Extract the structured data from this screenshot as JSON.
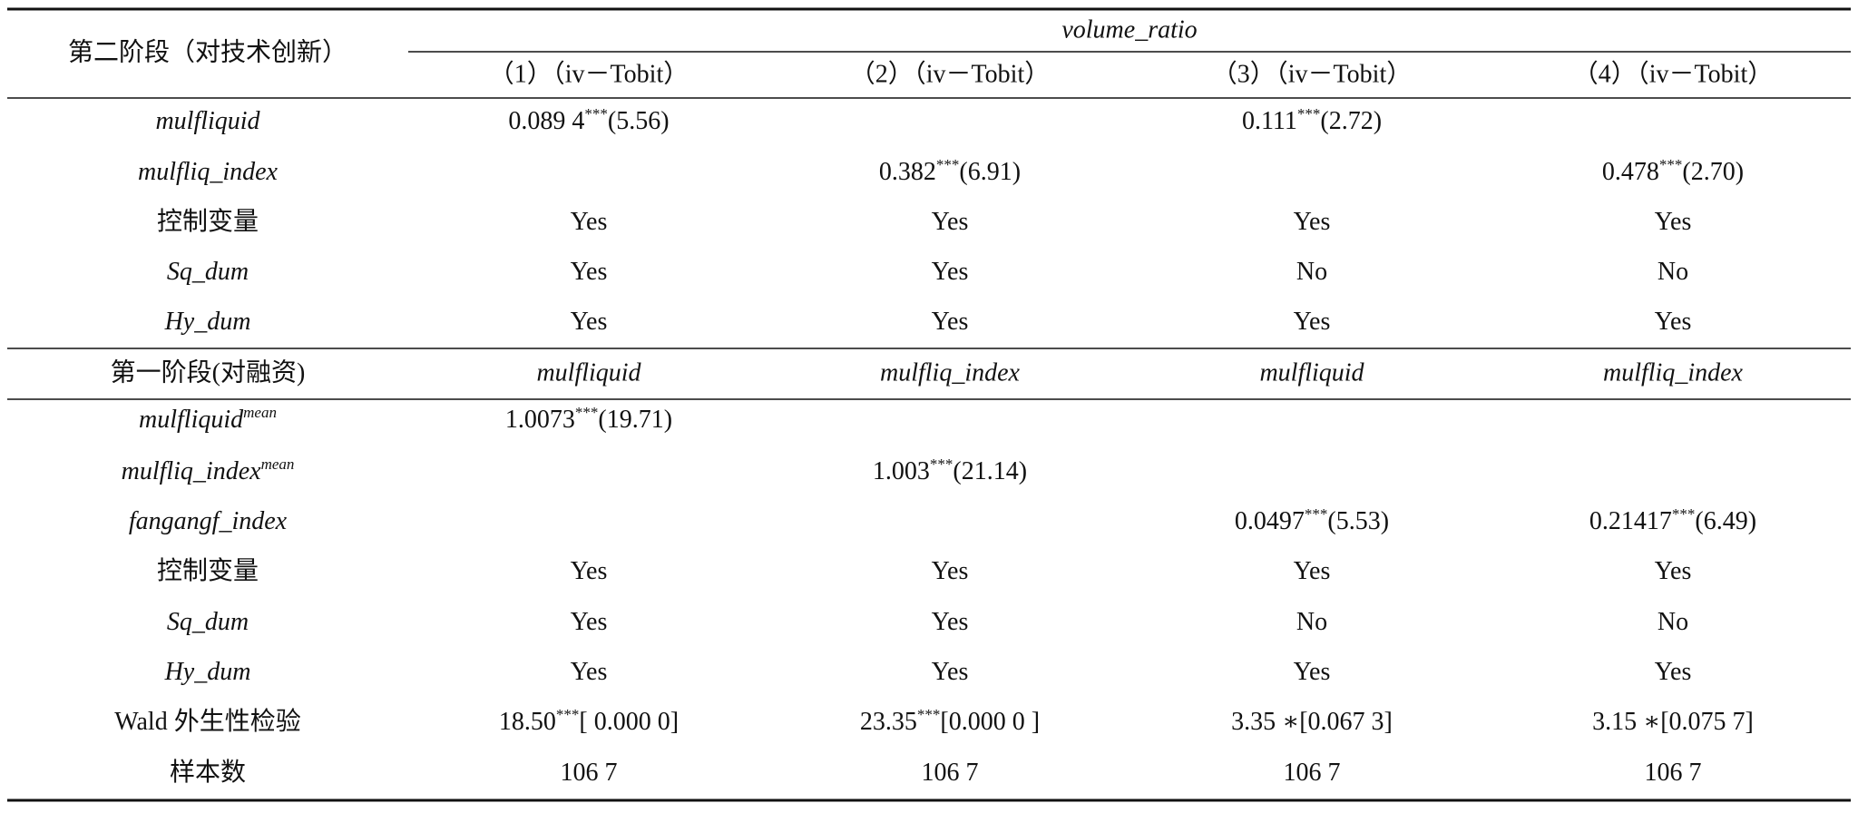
{
  "table": {
    "top": {
      "stage_label": "第二阶段（对技术创新）",
      "dependent": "volume_ratio",
      "columns": [
        "（1）（iv－Tobit）",
        "（2）（iv－Tobit）",
        "（3）（iv－Tobit）",
        "（4）（iv－Tobit）"
      ],
      "rows": [
        {
          "italic": true,
          "label": {
            "main": "mulfliquid"
          },
          "cells": [
            {
              "main": "0.089 4",
              "sup": "***",
              "rest": "(5.56)"
            },
            null,
            {
              "main": "0.111",
              "sup": "***",
              "rest": "(2.72)"
            },
            null
          ]
        },
        {
          "italic": true,
          "label": {
            "main": "mulfliq_index"
          },
          "cells": [
            null,
            {
              "main": "0.382",
              "sup": "***",
              "rest": "(6.91)"
            },
            null,
            {
              "main": "0.478",
              "sup": "***",
              "rest": "(2.70)"
            }
          ]
        },
        {
          "italic": false,
          "label": {
            "main": "控制变量"
          },
          "cells": [
            {
              "main": "Yes"
            },
            {
              "main": "Yes"
            },
            {
              "main": "Yes"
            },
            {
              "main": "Yes"
            }
          ]
        },
        {
          "italic": true,
          "label": {
            "main": "Sq_dum"
          },
          "cells": [
            {
              "main": "Yes"
            },
            {
              "main": "Yes"
            },
            {
              "main": "No"
            },
            {
              "main": "No"
            }
          ]
        },
        {
          "italic": true,
          "label": {
            "main": "Hy_dum"
          },
          "cells": [
            {
              "main": "Yes"
            },
            {
              "main": "Yes"
            },
            {
              "main": "Yes"
            },
            {
              "main": "Yes"
            }
          ]
        }
      ]
    },
    "bottom": {
      "stage_label": "第一阶段(对融资)",
      "columns": [
        "mulfliquid",
        "mulfliq_index",
        "mulfliquid",
        "mulfliq_index"
      ],
      "rows": [
        {
          "italic": true,
          "label": {
            "main": "mulfliquid",
            "sup": "mean"
          },
          "cells": [
            {
              "main": "1.0073",
              "sup": "***",
              "rest": "(19.71)"
            },
            null,
            null,
            null
          ]
        },
        {
          "italic": true,
          "label": {
            "main": "mulfliq_index",
            "sup": "mean"
          },
          "cells": [
            null,
            {
              "main": "1.003",
              "sup": "***",
              "rest": "(21.14)"
            },
            null,
            null
          ]
        },
        {
          "italic": true,
          "label": {
            "main": "fangangf_index"
          },
          "cells": [
            null,
            null,
            {
              "main": "0.0497",
              "sup": "***",
              "rest": "(5.53)"
            },
            {
              "main": "0.21417",
              "sup": "***",
              "rest": "(6.49)"
            }
          ]
        },
        {
          "italic": false,
          "label": {
            "main": "控制变量"
          },
          "cells": [
            {
              "main": "Yes"
            },
            {
              "main": "Yes"
            },
            {
              "main": "Yes"
            },
            {
              "main": "Yes"
            }
          ]
        },
        {
          "italic": true,
          "label": {
            "main": "Sq_dum"
          },
          "cells": [
            {
              "main": "Yes"
            },
            {
              "main": "Yes"
            },
            {
              "main": "No"
            },
            {
              "main": "No"
            }
          ]
        },
        {
          "italic": true,
          "label": {
            "main": "Hy_dum"
          },
          "cells": [
            {
              "main": "Yes"
            },
            {
              "main": "Yes"
            },
            {
              "main": "Yes"
            },
            {
              "main": "Yes"
            }
          ]
        },
        {
          "italic": false,
          "label": {
            "main": "Wald 外生性检验"
          },
          "cells": [
            {
              "main": "18.50",
              "sup": "***",
              "rest": "[ 0.000 0]"
            },
            {
              "main": "23.35",
              "sup": "***",
              "rest": "[0.000 0 ]"
            },
            {
              "main": "3.35 ∗[0.067 3]"
            },
            {
              "main": "3.15 ∗[0.075 7]"
            }
          ]
        },
        {
          "italic": false,
          "label": {
            "main": "样本数"
          },
          "cells": [
            {
              "main": "106 7"
            },
            {
              "main": "106 7"
            },
            {
              "main": "106 7"
            },
            {
              "main": "106 7"
            }
          ]
        }
      ]
    }
  }
}
